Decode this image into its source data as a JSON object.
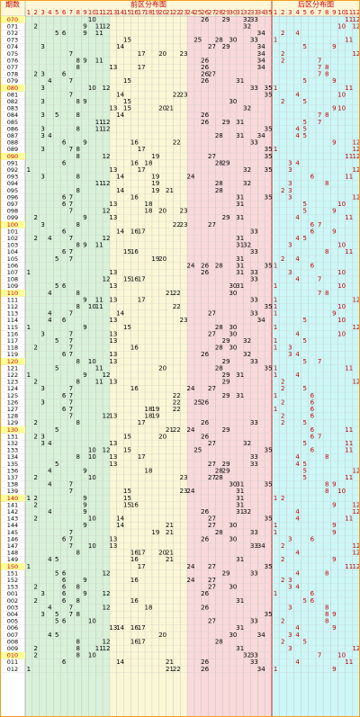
{
  "header": {
    "issue_label": "期数",
    "front_title": "前区分布图",
    "back_title": "后区分布图",
    "front_columns": [
      1,
      2,
      3,
      4,
      5,
      6,
      7,
      8,
      9,
      10,
      11,
      12,
      13,
      14,
      15,
      16,
      17,
      18,
      19,
      20,
      21,
      22,
      23,
      24,
      25,
      26,
      27,
      28,
      29,
      30,
      31,
      32,
      33,
      34,
      35
    ],
    "back_columns": [
      1,
      2,
      3,
      4,
      5,
      6,
      7,
      8,
      9,
      10,
      11,
      12
    ]
  },
  "rows": [
    {
      "issue": "070",
      "front": [
        10,
        26,
        29,
        32,
        33
      ],
      "back": [
        11,
        12
      ]
    },
    {
      "issue": "071",
      "front": [
        2,
        9,
        11,
        12,
        32
      ],
      "back": [
        10,
        12
      ]
    },
    {
      "issue": "072",
      "front": [
        5,
        6,
        9,
        11,
        34
      ],
      "back": [
        2,
        4
      ]
    },
    {
      "issue": "073",
      "front": [
        15,
        25,
        28,
        30,
        33
      ],
      "back": [
        1,
        11
      ]
    },
    {
      "issue": "074",
      "front": [
        3,
        14,
        27,
        29,
        34
      ],
      "back": [
        5,
        9
      ]
    },
    {
      "issue": "075",
      "front": [
        7,
        17,
        20,
        23,
        34
      ],
      "back": [
        2,
        12
      ]
    },
    {
      "issue": "076",
      "front": [
        8,
        9,
        11,
        26,
        34
      ],
      "back": [
        2,
        7
      ]
    },
    {
      "issue": "077",
      "front": [
        8,
        13,
        17,
        26,
        34
      ],
      "back": [
        7,
        8
      ]
    },
    {
      "issue": "078",
      "front": [
        2,
        3,
        6,
        26,
        27
      ],
      "back": [
        7,
        8
      ]
    },
    {
      "issue": "079",
      "front": [
        4,
        7,
        15,
        26,
        31
      ],
      "back": [
        5,
        9
      ]
    },
    {
      "issue": "080",
      "front": [
        3,
        10,
        12,
        33,
        35
      ],
      "back": [
        1,
        11
      ]
    },
    {
      "issue": "081",
      "front": [
        7,
        14,
        22,
        23,
        35
      ],
      "back": [
        4,
        10
      ]
    },
    {
      "issue": "082",
      "front": [
        3,
        8,
        9,
        15,
        30
      ],
      "back": [
        2,
        5
      ]
    },
    {
      "issue": "083",
      "front": [
        13,
        15,
        20,
        21,
        32
      ],
      "back": [
        9,
        10
      ]
    },
    {
      "issue": "084",
      "front": [
        3,
        5,
        8,
        14,
        26
      ],
      "back": [
        7,
        8
      ]
    },
    {
      "issue": "085",
      "front": [
        11,
        12,
        26,
        29,
        31
      ],
      "back": [
        5,
        7
      ]
    },
    {
      "issue": "086",
      "front": [
        3,
        8,
        11,
        12,
        35
      ],
      "back": [
        4,
        5
      ]
    },
    {
      "issue": "087",
      "front": [
        3,
        4,
        28,
        31,
        34
      ],
      "back": [
        4,
        5
      ]
    },
    {
      "issue": "088",
      "front": [
        6,
        9,
        16,
        22,
        33
      ],
      "back": [
        9,
        12
      ]
    },
    {
      "issue": "089",
      "front": [
        3,
        7,
        8,
        17,
        35
      ],
      "back": [
        1,
        12
      ]
    },
    {
      "issue": "090",
      "front": [
        8,
        12,
        19,
        27,
        35
      ],
      "back": [
        11,
        12
      ]
    },
    {
      "issue": "091",
      "front": [
        6,
        16,
        18,
        28,
        29
      ],
      "back": [
        3,
        4
      ]
    },
    {
      "issue": "092",
      "front": [
        1,
        13,
        17,
        32,
        35
      ],
      "back": [
        3,
        12
      ]
    },
    {
      "issue": "093",
      "front": [
        3,
        8,
        14,
        19,
        24
      ],
      "back": [
        6,
        11
      ]
    },
    {
      "issue": "094",
      "front": [
        11,
        12,
        19,
        28,
        32
      ],
      "back": [
        3,
        8
      ]
    },
    {
      "issue": "095",
      "front": [
        8,
        14,
        19,
        21,
        28
      ],
      "back": [
        2,
        3
      ]
    },
    {
      "issue": "096",
      "front": [
        6,
        7,
        16,
        31,
        35
      ],
      "back": [
        3,
        12
      ]
    },
    {
      "issue": "097",
      "front": [
        6,
        7,
        13,
        18,
        31
      ],
      "back": [
        5,
        10
      ]
    },
    {
      "issue": "098",
      "front": [
        7,
        12,
        18,
        20,
        23
      ],
      "back": [
        5,
        9
      ]
    },
    {
      "issue": "099",
      "front": [
        2,
        9,
        13,
        29,
        31
      ],
      "back": [
        4,
        11
      ]
    },
    {
      "issue": "100",
      "front": [
        3,
        8,
        22,
        23,
        27
      ],
      "back": [
        6,
        7
      ]
    },
    {
      "issue": "101",
      "front": [
        6,
        14,
        16,
        17,
        33
      ],
      "back": [
        6,
        9
      ]
    },
    {
      "issue": "102",
      "front": [
        2,
        4,
        7,
        12,
        31
      ],
      "back": [
        4,
        5
      ]
    },
    {
      "issue": "103",
      "front": [
        8,
        9,
        11,
        31,
        32
      ],
      "back": [
        3,
        10
      ]
    },
    {
      "issue": "104",
      "front": [
        6,
        7,
        15,
        16,
        33
      ],
      "back": [
        8,
        11
      ]
    },
    {
      "issue": "105",
      "front": [
        5,
        7,
        19,
        20,
        31
      ],
      "back": [
        2,
        4
      ]
    },
    {
      "issue": "106",
      "front": [
        24,
        26,
        28,
        31,
        35
      ],
      "back": [
        1,
        6
      ]
    },
    {
      "issue": "107",
      "front": [
        1,
        13,
        26,
        31,
        33
      ],
      "back": [
        3,
        10
      ]
    },
    {
      "issue": "108",
      "front": [
        12,
        15,
        16,
        17,
        33
      ],
      "back": [
        4,
        7
      ]
    },
    {
      "issue": "109",
      "front": [
        5,
        6,
        13,
        30,
        31
      ],
      "back": [
        1,
        10
      ]
    },
    {
      "issue": "110",
      "front": [
        4,
        8,
        21,
        22,
        30
      ],
      "back": [
        7,
        8
      ]
    },
    {
      "issue": "111",
      "front": [
        9,
        11,
        13,
        17,
        33
      ],
      "back": [
        1,
        12
      ]
    },
    {
      "issue": "112",
      "front": [
        8,
        10,
        11,
        22,
        35
      ],
      "back": [
        1,
        10
      ]
    },
    {
      "issue": "113",
      "front": [
        4,
        7,
        14,
        27,
        33
      ],
      "back": [
        1,
        9
      ]
    },
    {
      "issue": "114",
      "front": [
        4,
        6,
        13,
        23,
        34
      ],
      "back": [
        5,
        10
      ]
    },
    {
      "issue": "115",
      "front": [
        1,
        9,
        15,
        28,
        30
      ],
      "back": [
        1,
        12
      ]
    },
    {
      "issue": "116",
      "front": [
        3,
        7,
        13,
        27,
        30
      ],
      "back": [
        4,
        10
      ]
    },
    {
      "issue": "117",
      "front": [
        5,
        7,
        13,
        29,
        32
      ],
      "back": [
        1,
        5
      ]
    },
    {
      "issue": "118",
      "front": [
        2,
        7,
        16,
        28,
        30
      ],
      "back": [
        1,
        3
      ]
    },
    {
      "issue": "119",
      "front": [
        6,
        7,
        13,
        26,
        32
      ],
      "back": [
        3,
        4
      ]
    },
    {
      "issue": "120",
      "front": [
        8,
        10,
        13,
        29,
        33
      ],
      "back": [
        5,
        7
      ]
    },
    {
      "issue": "121",
      "front": [
        5,
        11,
        20,
        28,
        35
      ],
      "back": [
        1,
        11
      ]
    },
    {
      "issue": "122",
      "front": [
        1,
        9,
        12,
        29,
        31
      ],
      "back": [
        1,
        4
      ]
    },
    {
      "issue": "123",
      "front": [
        2,
        8,
        11,
        13,
        29
      ],
      "back": [
        2,
        12
      ]
    },
    {
      "issue": "124",
      "front": [
        3,
        7,
        16,
        24,
        27
      ],
      "back": [
        2,
        5
      ]
    },
    {
      "issue": "125",
      "front": [
        6,
        7,
        22,
        29,
        31
      ],
      "back": [
        1,
        6
      ]
    },
    {
      "issue": "126",
      "front": [
        3,
        7,
        22,
        25,
        26
      ],
      "back": [
        2,
        6
      ]
    },
    {
      "issue": "127",
      "front": [
        6,
        7,
        18,
        19,
        22
      ],
      "back": [
        1,
        6
      ]
    },
    {
      "issue": "128",
      "front": [
        7,
        12,
        13,
        18,
        19
      ],
      "back": [
        2,
        6
      ]
    },
    {
      "issue": "129",
      "front": [
        2,
        8,
        17,
        26,
        33
      ],
      "back": [
        2,
        5
      ]
    },
    {
      "issue": "130",
      "front": [
        5,
        21,
        22,
        24,
        29
      ],
      "back": [
        6,
        11
      ]
    },
    {
      "issue": "131",
      "front": [
        2,
        3,
        15,
        20,
        26
      ],
      "back": [
        6,
        7
      ]
    },
    {
      "issue": "132",
      "front": [
        3,
        4,
        13,
        27,
        32
      ],
      "back": [
        5,
        11
      ]
    },
    {
      "issue": "133",
      "front": [
        10,
        12,
        15,
        25,
        35
      ],
      "back": [
        6,
        11
      ]
    },
    {
      "issue": "134",
      "front": [
        8,
        10,
        13,
        17,
        33
      ],
      "back": [
        4,
        8
      ]
    },
    {
      "issue": "135",
      "front": [
        5,
        13,
        27,
        29,
        33
      ],
      "back": [
        4,
        5
      ]
    },
    {
      "issue": "136",
      "front": [
        4,
        9,
        18,
        28,
        29
      ],
      "back": [
        5,
        12
      ]
    },
    {
      "issue": "137",
      "front": [
        2,
        10,
        23,
        27,
        28
      ],
      "back": [
        5,
        11
      ]
    },
    {
      "issue": "138",
      "front": [
        4,
        7,
        30,
        31,
        35
      ],
      "back": [
        8,
        9
      ]
    },
    {
      "issue": "139",
      "front": [
        7,
        15,
        23,
        24,
        31
      ],
      "back": [
        8,
        10
      ]
    },
    {
      "issue": "140",
      "front": [
        1,
        2,
        9,
        15,
        31
      ],
      "back": [
        1,
        2
      ]
    },
    {
      "issue": "141",
      "front": [
        2,
        9,
        15,
        16,
        31
      ],
      "back": [
        9,
        12
      ]
    },
    {
      "issue": "142",
      "front": [
        4,
        9,
        26,
        31,
        32
      ],
      "back": [
        4,
        12
      ]
    },
    {
      "issue": "143",
      "front": [
        2,
        10,
        14,
        27,
        35
      ],
      "back": [
        4,
        11
      ]
    },
    {
      "issue": "144",
      "front": [
        9,
        14,
        21,
        27,
        30
      ],
      "back": [
        1,
        9
      ]
    },
    {
      "issue": "145",
      "front": [
        7,
        19,
        21,
        28,
        33
      ],
      "back": [
        1,
        9
      ]
    },
    {
      "issue": "146",
      "front": [
        6,
        7,
        13,
        26,
        30
      ],
      "back": [
        3,
        6
      ]
    },
    {
      "issue": "147",
      "front": [
        7,
        10,
        13,
        33,
        34
      ],
      "back": [
        2,
        12
      ]
    },
    {
      "issue": "148",
      "front": [
        8,
        16,
        17,
        20,
        21
      ],
      "back": [
        4,
        12
      ]
    },
    {
      "issue": "149",
      "front": [
        4,
        5,
        16,
        21,
        31
      ],
      "back": [
        2,
        9
      ]
    },
    {
      "issue": "150",
      "front": [
        1,
        17,
        24,
        27,
        35
      ],
      "back": [
        11,
        12
      ]
    },
    {
      "issue": "151",
      "front": [
        5,
        6,
        12,
        29,
        33
      ],
      "back": [
        4,
        8
      ]
    },
    {
      "issue": "152",
      "front": [
        6,
        9,
        16,
        24,
        27
      ],
      "back": [
        2,
        3
      ]
    },
    {
      "issue": "153",
      "front": [
        2,
        6,
        8,
        27,
        30
      ],
      "back": [
        3,
        4
      ]
    },
    {
      "issue": "001",
      "front": [
        3,
        6,
        9,
        12,
        26
      ],
      "back": [
        1,
        6
      ]
    },
    {
      "issue": "002",
      "front": [
        2,
        6,
        8,
        16,
        31
      ],
      "back": [
        5,
        6
      ]
    },
    {
      "issue": "003",
      "front": [
        4,
        7,
        12,
        18,
        26
      ],
      "back": [
        3,
        8
      ]
    },
    {
      "issue": "004",
      "front": [
        3,
        5,
        7,
        8,
        35
      ],
      "back": [
        8,
        9
      ]
    },
    {
      "issue": "005",
      "front": [
        5,
        6,
        10,
        27,
        33
      ],
      "back": [
        2,
        8
      ]
    },
    {
      "issue": "006",
      "front": [
        13,
        14,
        16,
        17,
        31
      ],
      "back": [
        4,
        9
      ]
    },
    {
      "issue": "007",
      "front": [
        4,
        5,
        20,
        30,
        34
      ],
      "back": [
        3,
        4
      ]
    },
    {
      "issue": "008",
      "front": [
        8,
        12,
        16,
        17,
        28
      ],
      "back": [
        2,
        5
      ]
    },
    {
      "issue": "009",
      "front": [
        2,
        8,
        11,
        12,
        31
      ],
      "back": [
        3,
        12
      ]
    },
    {
      "issue": "010",
      "front": [
        2,
        8,
        10,
        32,
        33
      ],
      "back": [
        7,
        10
      ]
    },
    {
      "issue": "011",
      "front": [
        6,
        14,
        21,
        26,
        33
      ],
      "back": [
        4,
        11
      ]
    },
    {
      "issue": "012",
      "front": [
        1,
        21,
        22,
        26,
        34
      ],
      "back": [
        1,
        9
      ]
    }
  ]
}
